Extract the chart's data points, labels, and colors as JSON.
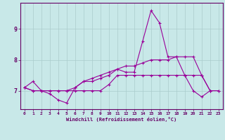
{
  "xlabel": "Windchill (Refroidissement éolien,°C)",
  "x_hours": [
    0,
    1,
    2,
    3,
    4,
    5,
    6,
    7,
    8,
    9,
    10,
    11,
    12,
    13,
    14,
    15,
    16,
    17,
    18,
    19,
    20,
    21,
    22,
    23
  ],
  "line1": [
    7.1,
    7.3,
    7.0,
    6.9,
    6.7,
    6.6,
    7.1,
    7.3,
    7.3,
    7.4,
    7.5,
    7.7,
    7.6,
    7.6,
    8.6,
    9.6,
    9.2,
    8.1,
    8.1,
    7.5,
    7.0,
    6.8,
    7.0,
    null
  ],
  "line2": [
    7.1,
    7.0,
    7.0,
    7.0,
    7.0,
    7.0,
    7.0,
    7.0,
    7.0,
    7.0,
    7.2,
    7.5,
    7.5,
    7.5,
    7.5,
    7.5,
    7.5,
    7.5,
    7.5,
    7.5,
    7.5,
    7.5,
    7.0,
    7.0
  ],
  "line3": [
    7.1,
    7.0,
    7.0,
    7.0,
    7.0,
    7.0,
    7.1,
    7.3,
    7.4,
    7.5,
    7.6,
    7.7,
    7.8,
    7.8,
    7.9,
    8.0,
    8.0,
    8.0,
    8.1,
    8.1,
    8.1,
    7.5,
    7.0,
    7.0
  ],
  "bg_color": "#c8e8e8",
  "line_color": "#990099",
  "grid_color": "#aacccc",
  "axis_color": "#660066",
  "ylim": [
    6.4,
    9.85
  ],
  "yticks": [
    7,
    8,
    9
  ],
  "figsize": [
    3.2,
    2.0
  ],
  "dpi": 100
}
